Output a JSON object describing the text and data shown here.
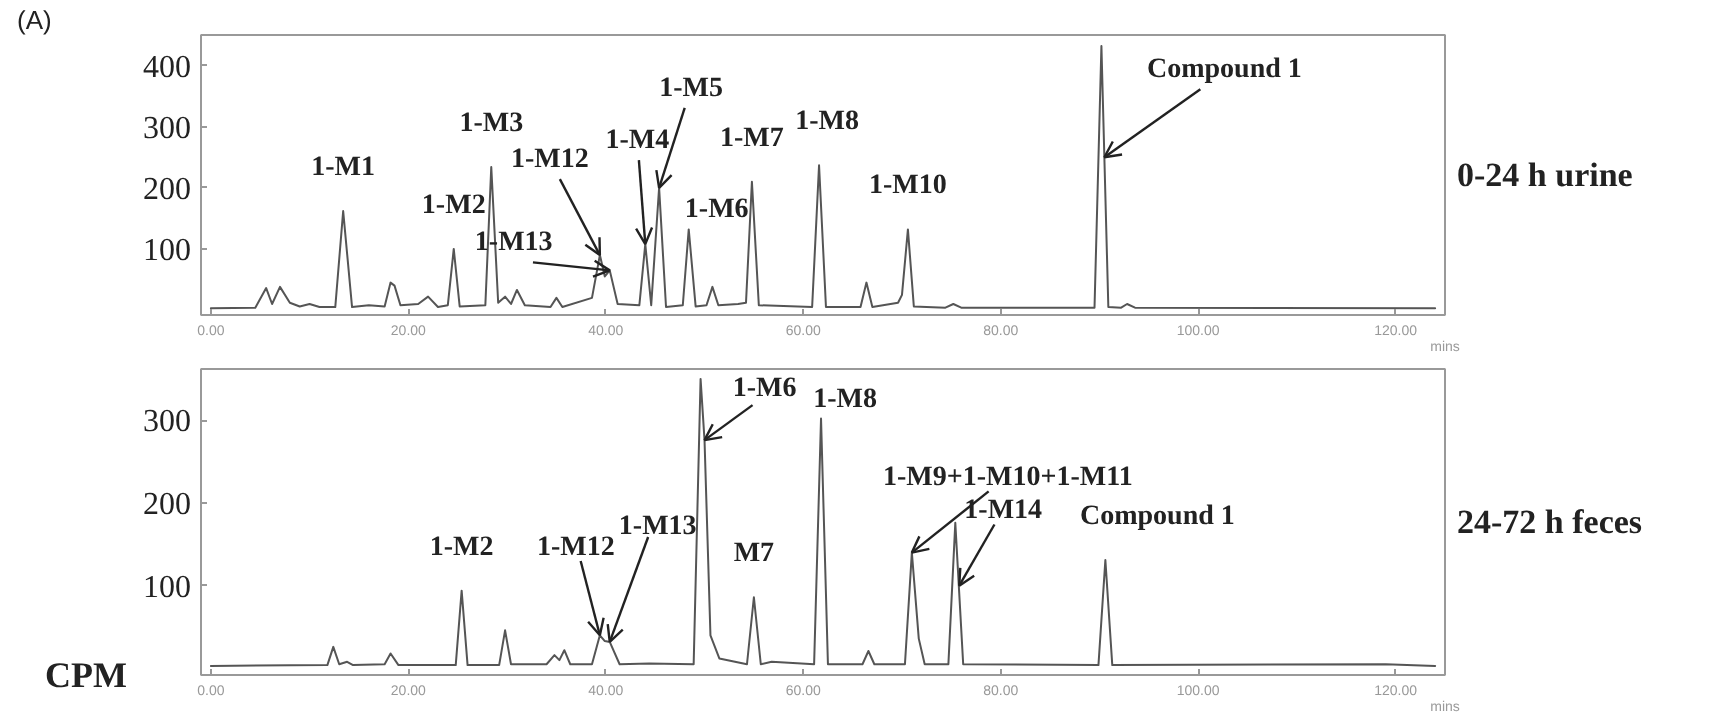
{
  "chart_data": [
    {
      "type": "line",
      "title": "0-24 h urine",
      "xlabel": "mins",
      "xlim": [
        -1,
        125
      ],
      "ylim": [
        -8,
        450
      ],
      "yticks": [
        100,
        200,
        300,
        400
      ],
      "xticks": [
        {
          "value": 0,
          "label": "0.00"
        },
        {
          "value": 20,
          "label": "20.00"
        },
        {
          "value": 40,
          "label": "40.00"
        },
        {
          "value": 60,
          "label": "60.00"
        },
        {
          "value": 80,
          "label": "80.00"
        },
        {
          "value": 100,
          "label": "100.00"
        },
        {
          "value": 120,
          "label": "120.00"
        }
      ],
      "series": [
        {
          "color": "#555555",
          "x": [
            0,
            4.5,
            5.6,
            6.2,
            7,
            8,
            9,
            10,
            11,
            12.6,
            13.4,
            14.3,
            16,
            17.6,
            18.2,
            18.6,
            19.2,
            21,
            22,
            23,
            24,
            24.6,
            25.2,
            27.8,
            28.4,
            29.1,
            29.8,
            30.4,
            31,
            31.8,
            34.4,
            35,
            35.6,
            38.6,
            39.4,
            39.9,
            40.4,
            41.2,
            43.4,
            44,
            44.6,
            45.4,
            46.1,
            47.8,
            48.4,
            49.1,
            50.2,
            50.8,
            51.4,
            53.4,
            54.2,
            54.8,
            55.5,
            60.9,
            61.6,
            62.3,
            65.8,
            66.4,
            67,
            69.6,
            70,
            70.6,
            71.2,
            74.4,
            75.2,
            76,
            89.5,
            90.2,
            90.9,
            92.2,
            92.8,
            93.6,
            124
          ],
          "values": [
            3,
            4,
            36,
            10,
            38,
            12,
            6,
            10,
            5,
            5,
            162,
            5,
            8,
            6,
            45,
            40,
            8,
            10,
            22,
            5,
            8,
            100,
            6,
            8,
            234,
            12,
            22,
            10,
            33,
            8,
            5,
            20,
            5,
            20,
            90,
            55,
            65,
            10,
            8,
            108,
            8,
            200,
            5,
            8,
            132,
            6,
            8,
            38,
            8,
            10,
            12,
            210,
            8,
            5,
            237,
            5,
            5,
            45,
            5,
            12,
            25,
            132,
            6,
            4,
            10,
            4,
            4,
            432,
            5,
            4,
            10,
            4,
            3
          ]
        }
      ],
      "annotations": [
        "(A)",
        {
          "text": "1-M1",
          "x": 13.4,
          "y": 162
        },
        {
          "text": "1-M2",
          "x": 24.6,
          "y": 100
        },
        {
          "text": "1-M3",
          "x": 28.4,
          "y": 234
        },
        {
          "text": "1-M12",
          "x": 39.4,
          "y": 90
        },
        {
          "text": "1-M13",
          "x": 40.4,
          "y": 65
        },
        {
          "text": "1-M4",
          "x": 44,
          "y": 108
        },
        {
          "text": "1-M5",
          "x": 45.4,
          "y": 200
        },
        {
          "text": "1-M6",
          "x": 48.4,
          "y": 132
        },
        {
          "text": "1-M7",
          "x": 54.8,
          "y": 210
        },
        {
          "text": "1-M8",
          "x": 61.6,
          "y": 237
        },
        {
          "text": "1-M10",
          "x": 70.6,
          "y": 132
        },
        {
          "text": "Compound 1",
          "x": 90.5,
          "y": 250
        }
      ]
    },
    {
      "type": "line",
      "title": "24-72 h feces",
      "xlabel": "mins",
      "ylabel": "CPM",
      "xlim": [
        -1,
        125
      ],
      "ylim": [
        -8,
        362
      ],
      "yticks": [
        100,
        200,
        300
      ],
      "xticks": [
        {
          "value": 0,
          "label": "0.00"
        },
        {
          "value": 20,
          "label": "20.00"
        },
        {
          "value": 40,
          "label": "40.00"
        },
        {
          "value": 60,
          "label": "60.00"
        },
        {
          "value": 80,
          "label": "80.00"
        },
        {
          "value": 100,
          "label": "100.00"
        },
        {
          "value": 120,
          "label": "120.00"
        }
      ],
      "series": [
        {
          "color": "#555555",
          "x": [
            0,
            11.8,
            12.4,
            13,
            13.8,
            14.4,
            17.6,
            18.2,
            19,
            24.8,
            25.4,
            26,
            29.2,
            29.8,
            30.4,
            34,
            34.8,
            35.3,
            35.8,
            36.4,
            38.6,
            39.4,
            39.9,
            40.4,
            41.4,
            44.4,
            48.9,
            49.6,
            50,
            50.6,
            51.5,
            54.3,
            55,
            55.7,
            56.8,
            61.1,
            61.8,
            62.5,
            66,
            66.6,
            67.2,
            70.3,
            71,
            71.7,
            72.3,
            74.7,
            75.4,
            76.2,
            89.9,
            90.6,
            91.3,
            119,
            124
          ],
          "values": [
            3,
            4,
            26,
            5,
            8,
            4,
            5,
            18,
            4,
            4,
            94,
            4,
            4,
            46,
            5,
            5,
            16,
            10,
            22,
            5,
            5,
            40,
            33,
            32,
            5,
            6,
            5,
            350,
            276,
            40,
            12,
            5,
            86,
            5,
            8,
            5,
            302,
            5,
            5,
            21,
            5,
            5,
            140,
            36,
            5,
            5,
            176,
            5,
            4,
            131,
            4,
            5,
            3
          ]
        }
      ],
      "annotations": [
        {
          "text": "1-M2",
          "x": 25.4,
          "y": 94
        },
        {
          "text": "1-M12",
          "x": 39.4,
          "y": 40
        },
        {
          "text": "1-M13",
          "x": 40.4,
          "y": 32
        },
        {
          "text": "1-M6",
          "x": 50,
          "y": 276
        },
        {
          "text": "M7",
          "x": 55,
          "y": 86
        },
        {
          "text": "1-M8",
          "x": 61.8,
          "y": 302
        },
        {
          "text": "1-M9+1-M10+1-M11",
          "x": 71,
          "y": 140
        },
        {
          "text": "1-M14",
          "x": 75.8,
          "y": 100
        },
        {
          "text": "Compound 1",
          "x": 90.6,
          "y": 131
        }
      ]
    }
  ]
}
